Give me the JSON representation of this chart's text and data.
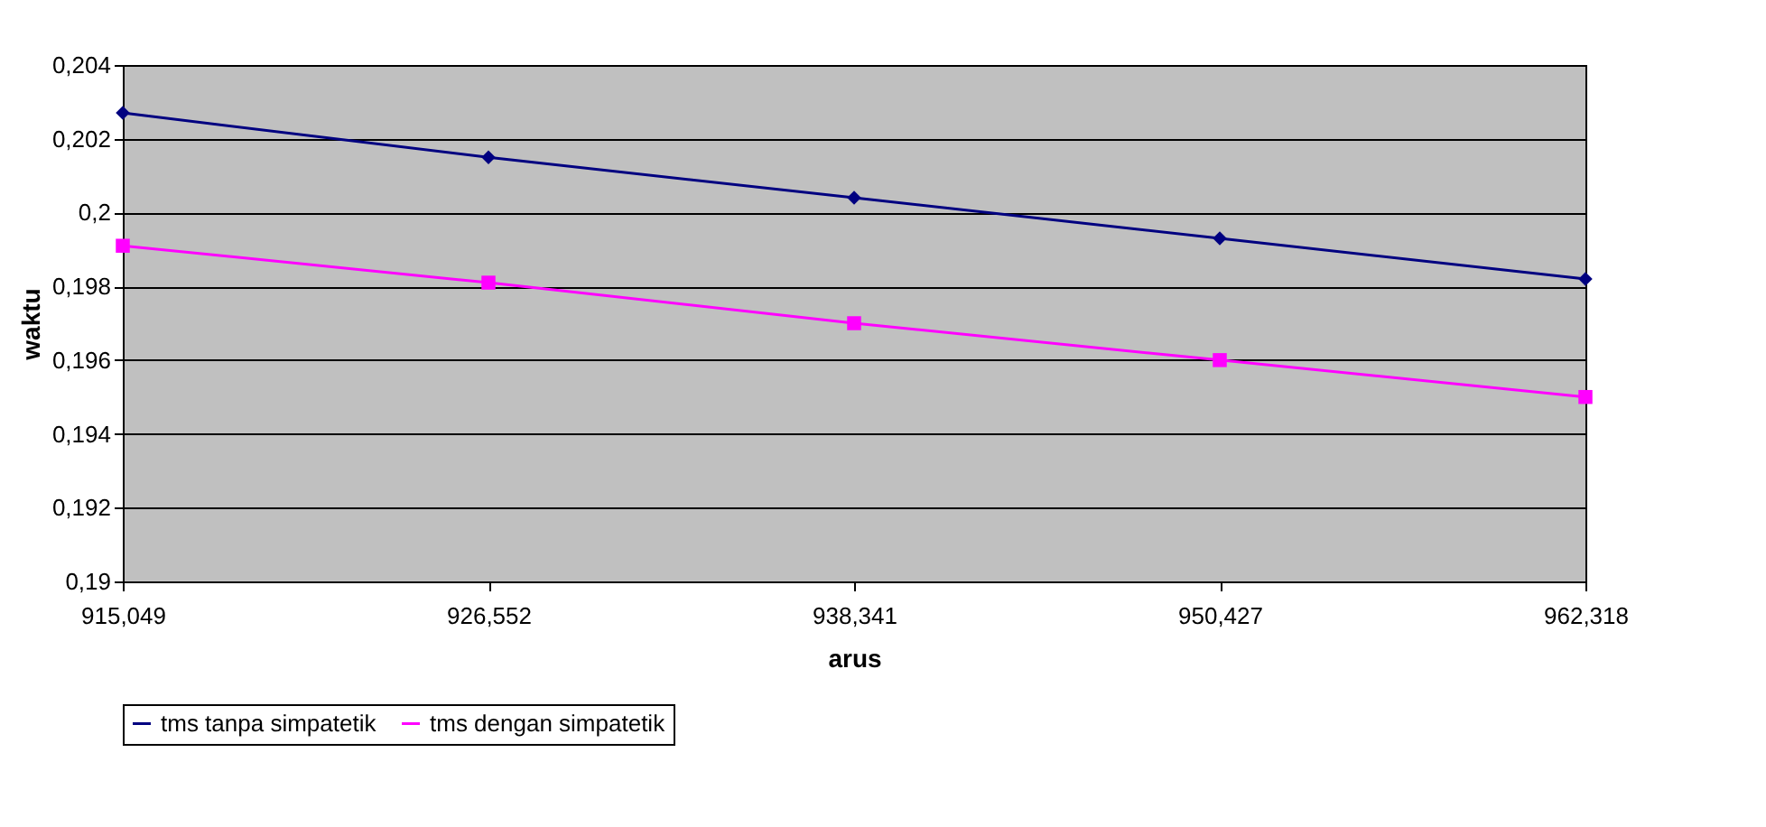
{
  "chart_data": {
    "type": "line",
    "xlabel": "arus",
    "ylabel": "waktu",
    "categories": [
      "915,049",
      "926,552",
      "938,341",
      "950,427",
      "962,318"
    ],
    "series": [
      {
        "name": "tms tanpa simpatetik",
        "color": "#000080",
        "marker": "diamond",
        "values": [
          0.2027,
          0.2015,
          0.2004,
          0.1993,
          0.1982
        ]
      },
      {
        "name": "tms dengan simpatetik",
        "color": "#ff00ff",
        "marker": "square",
        "values": [
          0.1991,
          0.1981,
          0.197,
          0.196,
          0.195
        ]
      }
    ],
    "ylim": [
      0.19,
      0.204
    ],
    "yticks": [
      {
        "value": 0.19,
        "label": "0,19"
      },
      {
        "value": 0.192,
        "label": "0,192"
      },
      {
        "value": 0.194,
        "label": "0,194"
      },
      {
        "value": 0.196,
        "label": "0,196"
      },
      {
        "value": 0.198,
        "label": "0,198"
      },
      {
        "value": 0.2,
        "label": "0,2"
      },
      {
        "value": 0.202,
        "label": "0,202"
      },
      {
        "value": 0.204,
        "label": "0,204"
      }
    ],
    "grid": "y",
    "legend": "bottom",
    "line_style": "solid"
  }
}
